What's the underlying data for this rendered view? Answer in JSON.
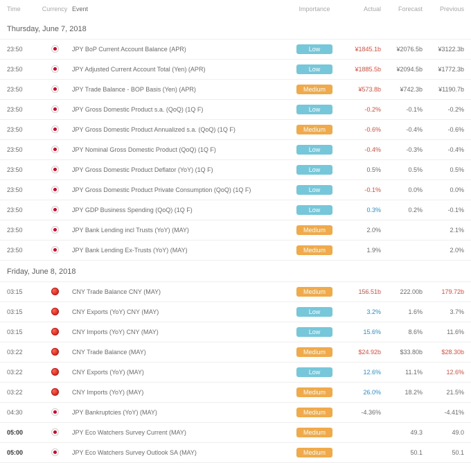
{
  "headers": {
    "time": "Time",
    "currency": "Currency",
    "event": "Event",
    "importance": "Importance",
    "actual": "Actual",
    "forecast": "Forecast",
    "previous": "Previous"
  },
  "colors": {
    "badge_low": "#76c7d9",
    "badge_medium": "#f0a94b",
    "text_red": "#e74c3c",
    "text_blue": "#2b8fd6",
    "text_normal": "#6b6b6b",
    "border": "#eeeeee"
  },
  "sections": [
    {
      "title": "Thursday, June 7, 2018",
      "rows": [
        {
          "time": "23:50",
          "flag": "jpy",
          "event": "JPY BoP Current Account Balance (APR)",
          "importance": "Low",
          "actual": "¥1845.1b",
          "actual_cls": "red",
          "forecast": "¥2076.5b",
          "previous": "¥3122.3b",
          "prev_cls": "normal"
        },
        {
          "time": "23:50",
          "flag": "jpy",
          "event": "JPY Adjusted Current Account Total (Yen) (APR)",
          "importance": "Low",
          "actual": "¥1885.5b",
          "actual_cls": "red",
          "forecast": "¥2094.5b",
          "previous": "¥1772.3b",
          "prev_cls": "normal"
        },
        {
          "time": "23:50",
          "flag": "jpy",
          "event": "JPY Trade Balance - BOP Basis (Yen) (APR)",
          "importance": "Medium",
          "actual": "¥573.8b",
          "actual_cls": "red",
          "forecast": "¥742.3b",
          "previous": "¥1190.7b",
          "prev_cls": "normal"
        },
        {
          "time": "23:50",
          "flag": "jpy",
          "event": "JPY Gross Domestic Product s.a. (QoQ) (1Q F)",
          "importance": "Low",
          "actual": "-0.2%",
          "actual_cls": "red",
          "forecast": "-0.1%",
          "previous": "-0.2%",
          "prev_cls": "normal"
        },
        {
          "time": "23:50",
          "flag": "jpy",
          "event": "JPY Gross Domestic Product Annualized s.a. (QoQ) (1Q F)",
          "importance": "Medium",
          "actual": "-0.6%",
          "actual_cls": "red",
          "forecast": "-0.4%",
          "previous": "-0.6%",
          "prev_cls": "normal"
        },
        {
          "time": "23:50",
          "flag": "jpy",
          "event": "JPY Nominal Gross Domestic Product (QoQ) (1Q F)",
          "importance": "Low",
          "actual": "-0.4%",
          "actual_cls": "red",
          "forecast": "-0.3%",
          "previous": "-0.4%",
          "prev_cls": "normal"
        },
        {
          "time": "23:50",
          "flag": "jpy",
          "event": "JPY Gross Domestic Product Deflator (YoY) (1Q F)",
          "importance": "Low",
          "actual": "0.5%",
          "actual_cls": "normal",
          "forecast": "0.5%",
          "previous": "0.5%",
          "prev_cls": "normal"
        },
        {
          "time": "23:50",
          "flag": "jpy",
          "event": "JPY Gross Domestic Product Private Consumption (QoQ) (1Q F)",
          "importance": "Low",
          "actual": "-0.1%",
          "actual_cls": "red",
          "forecast": "0.0%",
          "previous": "0.0%",
          "prev_cls": "normal"
        },
        {
          "time": "23:50",
          "flag": "jpy",
          "event": "JPY GDP Business Spending (QoQ) (1Q F)",
          "importance": "Low",
          "actual": "0.3%",
          "actual_cls": "blue",
          "forecast": "0.2%",
          "previous": "-0.1%",
          "prev_cls": "normal"
        },
        {
          "time": "23:50",
          "flag": "jpy",
          "event": "JPY Bank Lending incl Trusts (YoY) (MAY)",
          "importance": "Medium",
          "actual": "2.0%",
          "actual_cls": "normal",
          "forecast": "",
          "previous": "2.1%",
          "prev_cls": "normal"
        },
        {
          "time": "23:50",
          "flag": "jpy",
          "event": "JPY Bank Lending Ex-Trusts (YoY) (MAY)",
          "importance": "Medium",
          "actual": "1.9%",
          "actual_cls": "normal",
          "forecast": "",
          "previous": "2.0%",
          "prev_cls": "normal"
        }
      ]
    },
    {
      "title": "Friday, June 8, 2018",
      "rows": [
        {
          "time": "03:15",
          "flag": "cny",
          "event": "CNY Trade Balance CNY (MAY)",
          "importance": "Medium",
          "actual": "156.51b",
          "actual_cls": "red",
          "forecast": "222.00b",
          "previous": "179.72b",
          "prev_cls": "red"
        },
        {
          "time": "03:15",
          "flag": "cny",
          "event": "CNY Exports (YoY) CNY (MAY)",
          "importance": "Low",
          "actual": "3.2%",
          "actual_cls": "blue",
          "forecast": "1.6%",
          "previous": "3.7%",
          "prev_cls": "normal"
        },
        {
          "time": "03:15",
          "flag": "cny",
          "event": "CNY Imports (YoY) CNY (MAY)",
          "importance": "Low",
          "actual": "15.6%",
          "actual_cls": "blue",
          "forecast": "8.6%",
          "previous": "11.6%",
          "prev_cls": "normal"
        },
        {
          "time": "03:22",
          "flag": "cny",
          "event": "CNY Trade Balance (MAY)",
          "importance": "Medium",
          "actual": "$24.92b",
          "actual_cls": "red",
          "forecast": "$33.80b",
          "previous": "$28.30b",
          "prev_cls": "red"
        },
        {
          "time": "03:22",
          "flag": "cny",
          "event": "CNY Exports (YoY) (MAY)",
          "importance": "Low",
          "actual": "12.6%",
          "actual_cls": "blue",
          "forecast": "11.1%",
          "previous": "12.6%",
          "prev_cls": "red"
        },
        {
          "time": "03:22",
          "flag": "cny",
          "event": "CNY Imports (YoY) (MAY)",
          "importance": "Medium",
          "actual": "26.0%",
          "actual_cls": "blue",
          "forecast": "18.2%",
          "previous": "21.5%",
          "prev_cls": "normal"
        },
        {
          "time": "04:30",
          "flag": "jpy",
          "event": "JPY Bankruptcies (YoY) (MAY)",
          "importance": "Medium",
          "actual": "-4.36%",
          "actual_cls": "normal",
          "forecast": "",
          "previous": "-4.41%",
          "prev_cls": "normal"
        },
        {
          "time": "05:00",
          "time_bold": true,
          "flag": "jpy",
          "event": "JPY Eco Watchers Survey Current (MAY)",
          "importance": "Medium",
          "actual": "",
          "actual_cls": "normal",
          "forecast": "49.3",
          "previous": "49.0",
          "prev_cls": "normal"
        },
        {
          "time": "05:00",
          "time_bold": true,
          "flag": "jpy",
          "event": "JPY Eco Watchers Survey Outlook SA (MAY)",
          "importance": "Medium",
          "actual": "",
          "actual_cls": "normal",
          "forecast": "50.1",
          "previous": "50.1",
          "prev_cls": "normal"
        }
      ]
    }
  ]
}
